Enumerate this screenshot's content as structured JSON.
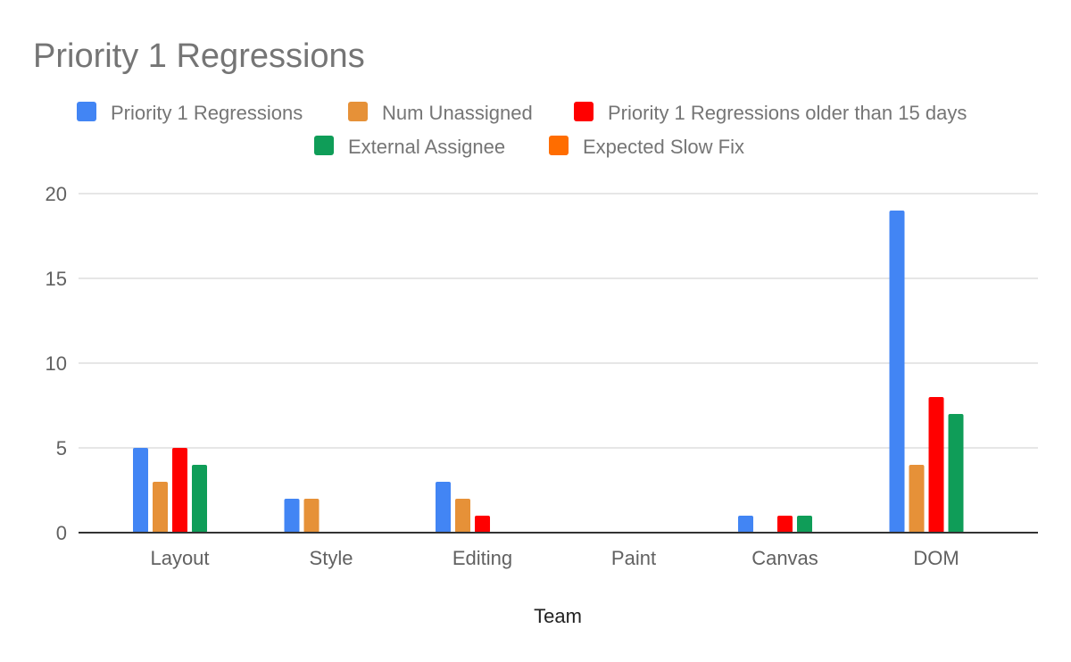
{
  "chart_data": {
    "type": "bar",
    "title": "Priority 1 Regressions",
    "xlabel": "Team",
    "ylabel": "",
    "ylim": [
      0,
      20
    ],
    "yticks": [
      0,
      5,
      10,
      15,
      20
    ],
    "grid": true,
    "legend_position": "top",
    "categories": [
      "Layout",
      "Style",
      "Editing",
      "Paint",
      "Canvas",
      "DOM"
    ],
    "series": [
      {
        "name": "Priority 1 Regressions",
        "color": "#4285F4",
        "values": [
          5,
          2,
          3,
          0,
          1,
          19
        ]
      },
      {
        "name": "Num Unassigned",
        "color": "#E69138",
        "values": [
          3,
          2,
          2,
          0,
          0,
          4
        ]
      },
      {
        "name": "Priority 1 Regressions older than 15 days",
        "color": "#FF0000",
        "values": [
          5,
          0,
          1,
          0,
          1,
          8
        ]
      },
      {
        "name": "External Assignee",
        "color": "#0F9D58",
        "values": [
          4,
          0,
          0,
          0,
          1,
          7
        ]
      },
      {
        "name": "Expected Slow Fix",
        "color": "#FF6D00",
        "values": [
          0,
          0,
          0,
          0,
          0,
          0
        ]
      }
    ]
  }
}
